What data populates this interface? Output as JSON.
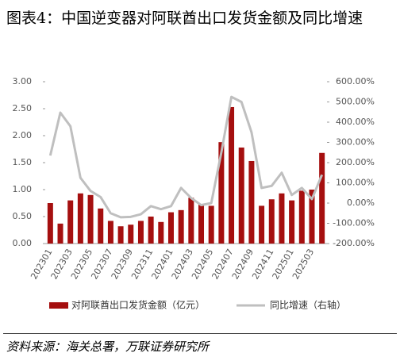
{
  "chart_data": {
    "type": "bar_line",
    "title": "图表4：中国逆变器对阿联酋出口发货金额及同比增速",
    "source": "资料来源：海关总署，万联证券研究所",
    "categories": [
      "202301",
      null,
      "202303",
      null,
      "202305",
      null,
      "202307",
      null,
      "202309",
      null,
      "202311",
      null,
      "202401",
      null,
      "202403",
      null,
      "202405",
      null,
      "202407",
      null,
      "202409",
      null,
      "202411",
      null,
      "202501",
      null,
      "202503",
      null
    ],
    "series": [
      {
        "name": "对阿联酋出口发货金额（亿元）",
        "type": "bar",
        "color": "#a50f0f",
        "values": [
          0.75,
          0.37,
          0.8,
          0.93,
          0.9,
          0.65,
          0.42,
          0.32,
          0.35,
          0.42,
          0.5,
          0.4,
          0.58,
          0.62,
          0.85,
          0.72,
          0.7,
          1.88,
          2.53,
          1.78,
          1.53,
          0.7,
          0.82,
          0.93,
          0.8,
          0.98,
          1.0,
          1.68
        ]
      },
      {
        "name": "同比增速（右轴）",
        "type": "line",
        "axis": "y2",
        "color": "#bfbfbf",
        "values": [
          235,
          447,
          380,
          125,
          60,
          30,
          -50,
          -70,
          -68,
          -55,
          -15,
          -30,
          -15,
          75,
          25,
          -10,
          0,
          250,
          525,
          500,
          350,
          75,
          85,
          150,
          40,
          75,
          20,
          140
        ]
      }
    ],
    "ylim": [
      0,
      3
    ],
    "yticks": [
      {
        "value": 0,
        "label": "0.00"
      },
      {
        "value": 0.5,
        "label": "0.50"
      },
      {
        "value": 1,
        "label": "1.00"
      },
      {
        "value": 1.5,
        "label": "1.50"
      },
      {
        "value": 2,
        "label": "2.00"
      },
      {
        "value": 2.5,
        "label": "2.50"
      },
      {
        "value": 3,
        "label": "3.00"
      }
    ],
    "y2lim": [
      -200,
      600
    ],
    "y2ticks": [
      {
        "value": -200,
        "label": "-200.00%"
      },
      {
        "value": -100,
        "label": "-100.00%"
      },
      {
        "value": 0,
        "label": "0.00%"
      },
      {
        "value": 100,
        "label": "100.00%"
      },
      {
        "value": 200,
        "label": "200.00%"
      },
      {
        "value": 300,
        "label": "300.00%"
      },
      {
        "value": 400,
        "label": "400.00%"
      },
      {
        "value": 500,
        "label": "500.00%"
      },
      {
        "value": 600,
        "label": "600.00%"
      }
    ],
    "grid": false,
    "legend": "bottom"
  }
}
